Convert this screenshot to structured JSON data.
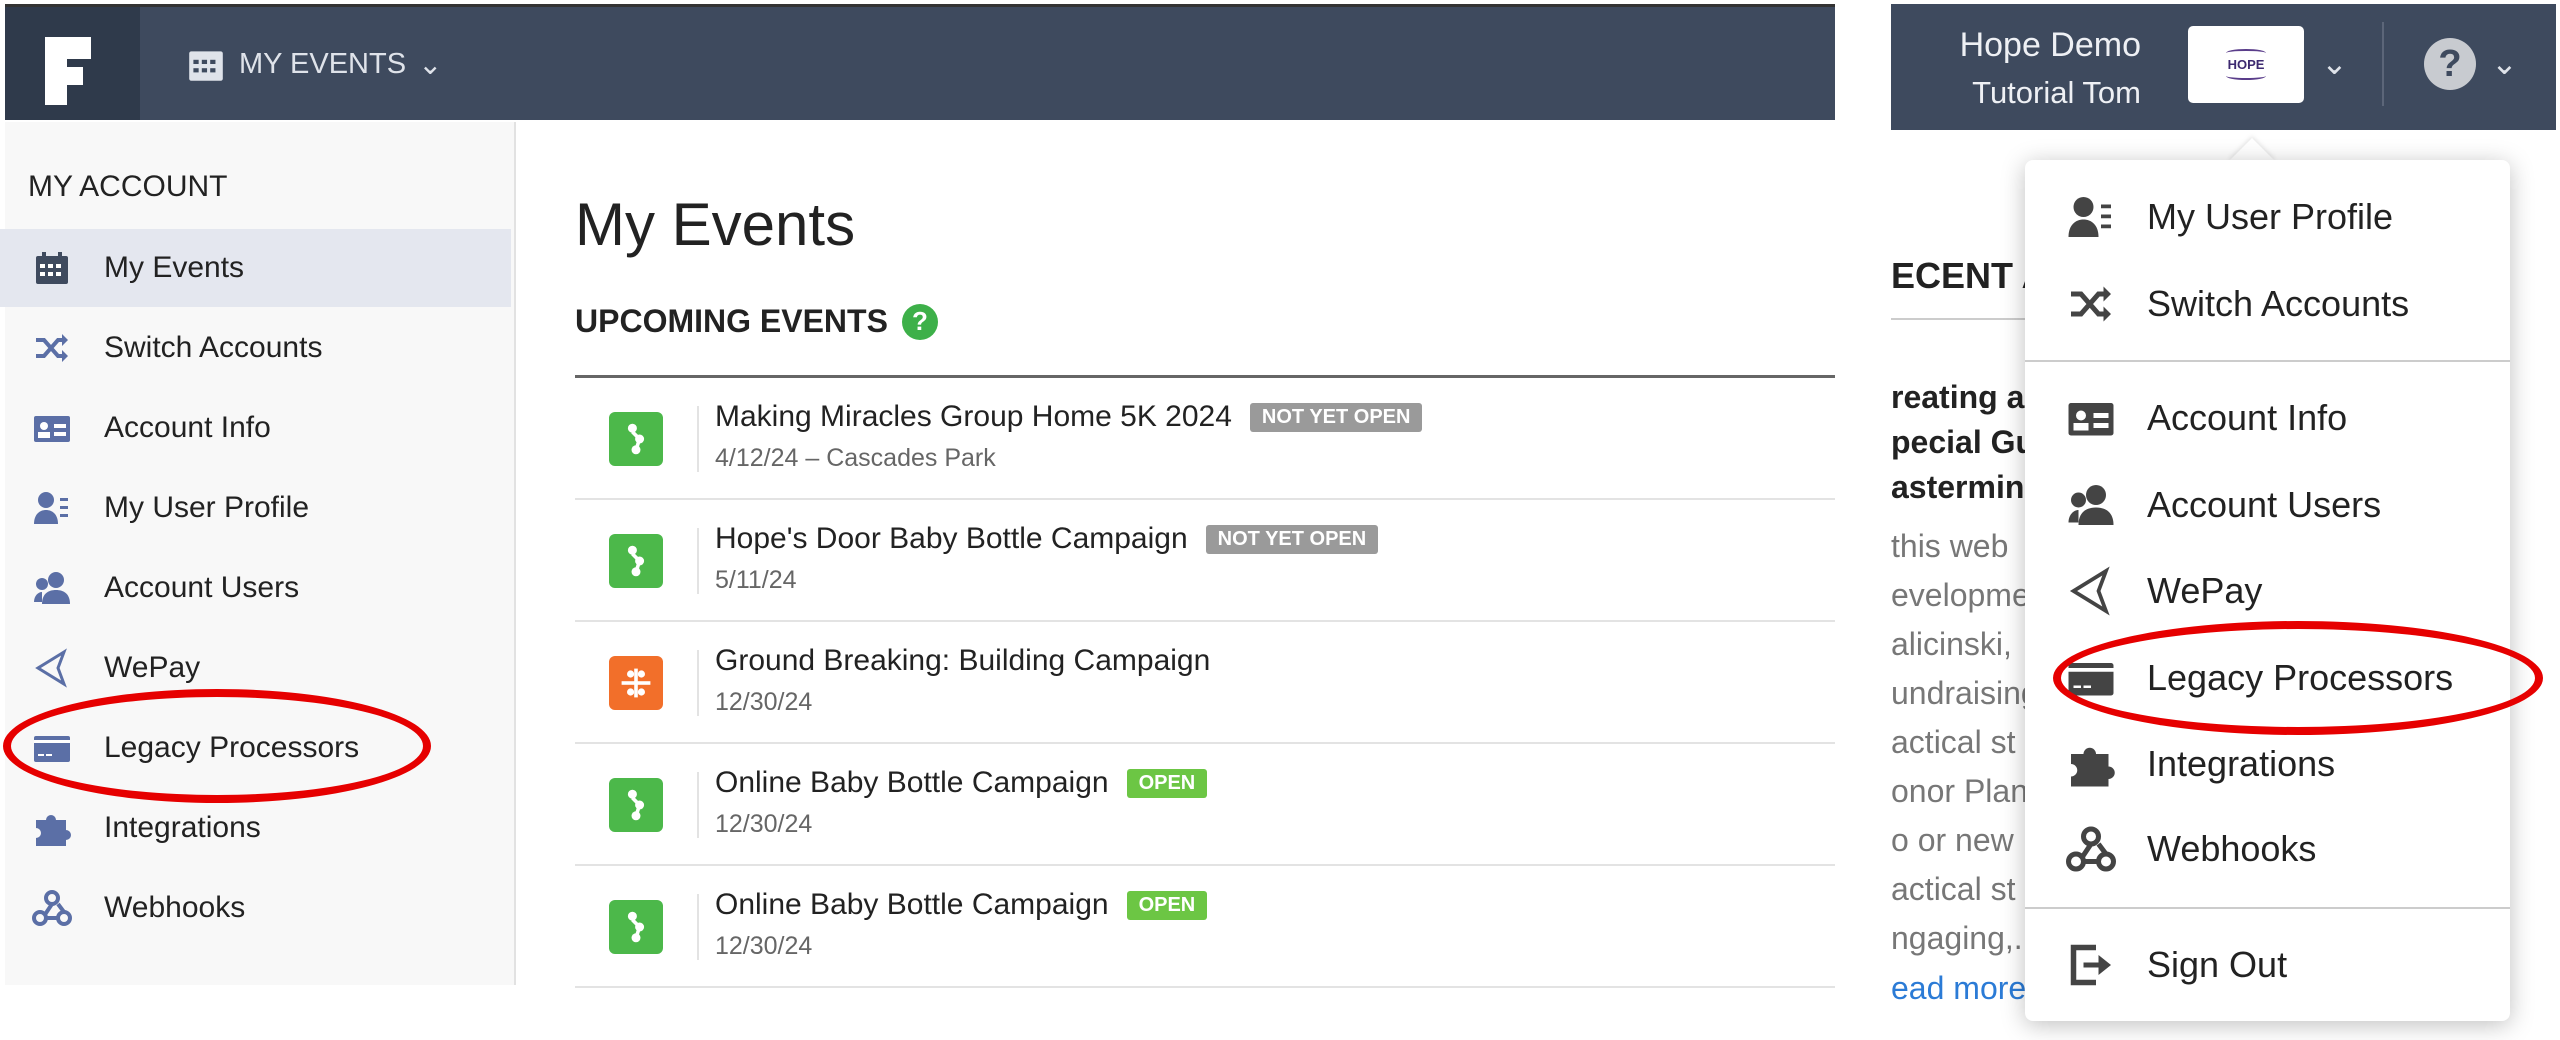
{
  "header": {
    "nav_label": "MY EVENTS",
    "account_name": "Hope Demo",
    "user_name": "Tutorial Tom",
    "account_logo_text": "HOPE"
  },
  "sidebar": {
    "heading": "MY ACCOUNT",
    "items": [
      {
        "label": "My Events",
        "icon": "calendar-icon",
        "selected": true
      },
      {
        "label": "Switch Accounts",
        "icon": "shuffle-icon"
      },
      {
        "label": "Account Info",
        "icon": "id-card-icon"
      },
      {
        "label": "My User Profile",
        "icon": "user-profile-icon"
      },
      {
        "label": "Account Users",
        "icon": "users-icon"
      },
      {
        "label": "WePay",
        "icon": "send-icon"
      },
      {
        "label": "Legacy Processors",
        "icon": "credit-card-icon"
      },
      {
        "label": "Integrations",
        "icon": "puzzle-icon"
      },
      {
        "label": "Webhooks",
        "icon": "webhook-icon"
      }
    ]
  },
  "main": {
    "title": "My Events",
    "upcoming_heading": "UPCOMING EVENTS",
    "events": [
      {
        "name": "Making Miracles Group Home 5K 2024",
        "date": "4/12/24 – Cascades Park",
        "status": "NOT YET OPEN",
        "type": "green"
      },
      {
        "name": "Hope's Door Baby Bottle Campaign",
        "date": "5/11/24",
        "status": "NOT YET OPEN",
        "type": "green"
      },
      {
        "name": "Ground Breaking: Building Campaign",
        "date": "12/30/24",
        "status": "",
        "type": "orange"
      },
      {
        "name": "Online Baby Bottle Campaign",
        "date": "12/30/24",
        "status": "OPEN",
        "type": "green"
      },
      {
        "name": "Online Baby Bottle Campaign",
        "date": "12/30/24",
        "status": "OPEN",
        "type": "green"
      }
    ]
  },
  "recent": {
    "heading": "ECENT A",
    "bold_lines": [
      "reating a",
      "pecial Gu",
      "astermin"
    ],
    "lines": [
      "this web",
      "evelopme",
      "alicinski,",
      "undraising",
      "actical st",
      "onor Plan",
      "o or new",
      "actical st",
      "ngaging,.."
    ],
    "read_more": "ead more"
  },
  "dropdown": {
    "groups": [
      [
        {
          "label": "My User Profile",
          "icon": "user-profile-icon"
        },
        {
          "label": "Switch Accounts",
          "icon": "shuffle-icon"
        }
      ],
      [
        {
          "label": "Account Info",
          "icon": "id-card-icon"
        },
        {
          "label": "Account Users",
          "icon": "users-icon"
        },
        {
          "label": "WePay",
          "icon": "send-icon"
        },
        {
          "label": "Legacy Processors",
          "icon": "credit-card-icon"
        },
        {
          "label": "Integrations",
          "icon": "puzzle-icon"
        },
        {
          "label": "Webhooks",
          "icon": "webhook-icon"
        }
      ],
      [
        {
          "label": "Sign Out",
          "icon": "sign-out-icon"
        }
      ]
    ]
  },
  "colors": {
    "header": "#3e4a5e",
    "green": "#4cb84a",
    "orange": "#f26f2a",
    "badge_grey": "#9a9a9a",
    "badge_green": "#6cc644",
    "highlight": "#e60000",
    "sidebar_icon": "#5b6fa6",
    "dropdown_icon": "#444444"
  }
}
